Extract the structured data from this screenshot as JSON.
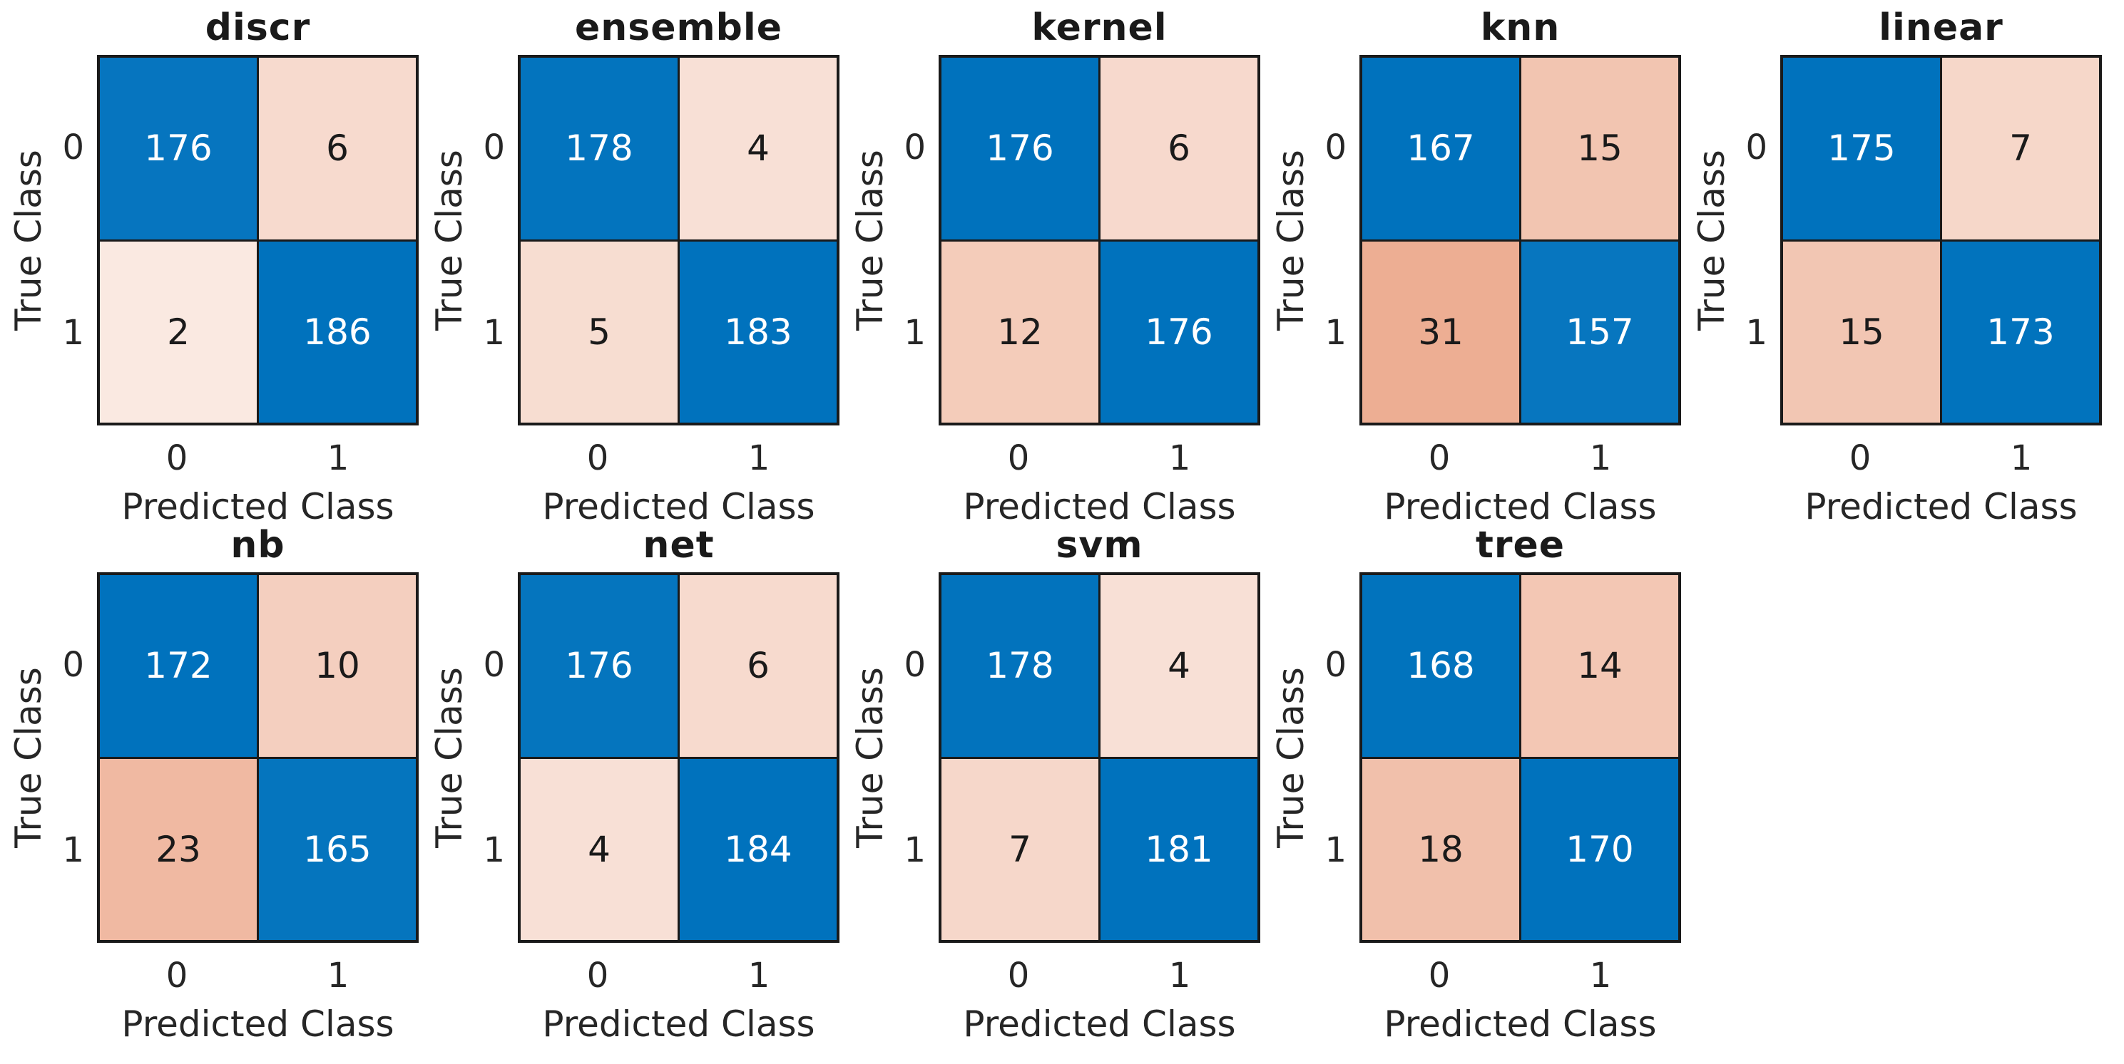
{
  "figure_title": "",
  "chart_data": {
    "type": "heatmap",
    "subtype": "confusion-matrix-grid",
    "xlabel": "Predicted Class",
    "ylabel": "True Class",
    "tick_labels": [
      "0",
      "1"
    ],
    "grid_layout": {
      "rows": 2,
      "cols": 5,
      "panels_in_row_2": 4
    },
    "colors": {
      "diagonal_base": "#0072BD",
      "off_diagonal_base": "#D95319",
      "grid_line": "#1a1a1a",
      "axis_text": "#262626",
      "title_text": "#1a1a1a",
      "cell_text_light": "#ffffff",
      "cell_text_dark": "#1a1a1a",
      "background": "#ffffff"
    },
    "color_gamma": 0.45,
    "panels": [
      {
        "title": "discr",
        "matrix": [
          [
            176,
            6
          ],
          [
            2,
            186
          ]
        ]
      },
      {
        "title": "ensemble",
        "matrix": [
          [
            178,
            4
          ],
          [
            5,
            183
          ]
        ]
      },
      {
        "title": "kernel",
        "matrix": [
          [
            176,
            6
          ],
          [
            12,
            176
          ]
        ]
      },
      {
        "title": "knn",
        "matrix": [
          [
            167,
            15
          ],
          [
            31,
            157
          ]
        ]
      },
      {
        "title": "linear",
        "matrix": [
          [
            175,
            7
          ],
          [
            15,
            173
          ]
        ]
      },
      {
        "title": "nb",
        "matrix": [
          [
            172,
            10
          ],
          [
            23,
            165
          ]
        ]
      },
      {
        "title": "net",
        "matrix": [
          [
            176,
            6
          ],
          [
            4,
            184
          ]
        ]
      },
      {
        "title": "svm",
        "matrix": [
          [
            178,
            4
          ],
          [
            7,
            181
          ]
        ]
      },
      {
        "title": "tree",
        "matrix": [
          [
            168,
            14
          ],
          [
            18,
            170
          ]
        ]
      }
    ]
  }
}
